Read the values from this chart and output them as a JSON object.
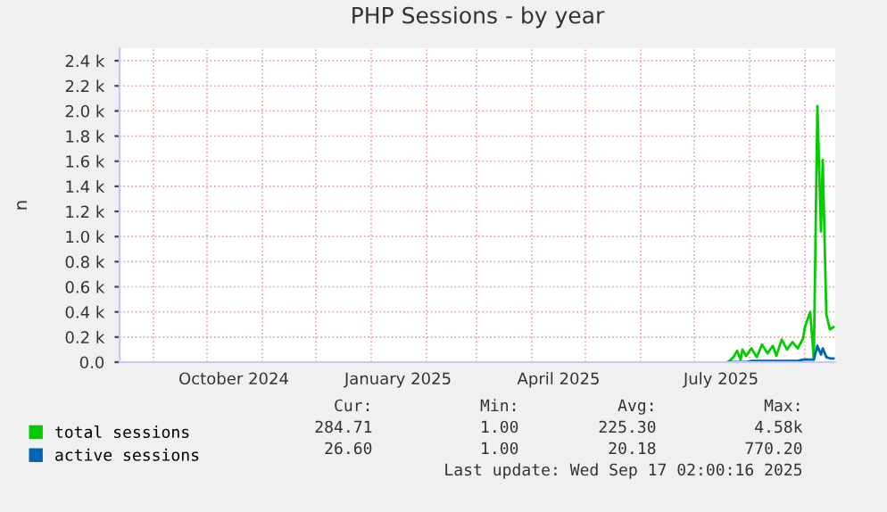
{
  "chart_data": {
    "type": "line",
    "title": "PHP Sessions - by year",
    "ylabel": "n",
    "x": [
      "2025-07-20",
      "2025-07-23",
      "2025-07-25",
      "2025-07-27",
      "2025-07-28",
      "2025-07-30",
      "2025-08-02",
      "2025-08-05",
      "2025-08-08",
      "2025-08-11",
      "2025-08-14",
      "2025-08-16",
      "2025-08-19",
      "2025-08-22",
      "2025-08-25",
      "2025-08-28",
      "2025-08-31",
      "2025-09-01",
      "2025-09-04",
      "2025-09-06",
      "2025-09-08",
      "2025-09-10",
      "2025-09-11",
      "2025-09-13",
      "2025-09-15",
      "2025-09-17"
    ],
    "series": [
      {
        "name": "total sessions",
        "color": "#00cc00",
        "values": [
          0,
          40,
          90,
          20,
          100,
          50,
          110,
          40,
          140,
          70,
          130,
          50,
          180,
          100,
          160,
          110,
          190,
          280,
          400,
          20,
          2040,
          1040,
          1610,
          380,
          260,
          280
        ]
      },
      {
        "name": "active sessions",
        "color": "#0066b3",
        "values": [
          0,
          0,
          0,
          0,
          0,
          0,
          10,
          10,
          10,
          10,
          10,
          10,
          10,
          10,
          10,
          10,
          20,
          20,
          20,
          20,
          130,
          60,
          110,
          40,
          30,
          30
        ]
      }
    ],
    "xlim": [
      "2024-08-13",
      "2025-09-18"
    ],
    "xticks": [
      {
        "value": "2024-09-01",
        "label": null
      },
      {
        "value": "2024-10-01",
        "label": null
      },
      {
        "value": "2024-10-16",
        "label": "October 2024"
      },
      {
        "value": "2024-11-01",
        "label": null
      },
      {
        "value": "2024-12-01",
        "label": null
      },
      {
        "value": "2025-01-01",
        "label": null
      },
      {
        "value": "2025-01-16",
        "label": "January 2025"
      },
      {
        "value": "2025-02-01",
        "label": null
      },
      {
        "value": "2025-03-01",
        "label": null
      },
      {
        "value": "2025-04-01",
        "label": null
      },
      {
        "value": "2025-04-16",
        "label": "April 2025"
      },
      {
        "value": "2025-05-01",
        "label": null
      },
      {
        "value": "2025-06-01",
        "label": null
      },
      {
        "value": "2025-07-01",
        "label": null
      },
      {
        "value": "2025-07-16",
        "label": "July 2025"
      },
      {
        "value": "2025-08-01",
        "label": null
      },
      {
        "value": "2025-09-01",
        "label": null
      }
    ],
    "ylim": [
      0,
      2500
    ],
    "yticks": [
      {
        "value": 0,
        "label": "0.0"
      },
      {
        "value": 200,
        "label": "0.2 k"
      },
      {
        "value": 400,
        "label": "0.4 k"
      },
      {
        "value": 600,
        "label": "0.6 k"
      },
      {
        "value": 800,
        "label": "0.8 k"
      },
      {
        "value": 1000,
        "label": "1.0 k"
      },
      {
        "value": 1200,
        "label": "1.2 k"
      },
      {
        "value": 1400,
        "label": "1.4 k"
      },
      {
        "value": 1600,
        "label": "1.6 k"
      },
      {
        "value": 1800,
        "label": "1.8 k"
      },
      {
        "value": 2000,
        "label": "2.0 k"
      },
      {
        "value": 2200,
        "label": "2.2 k"
      },
      {
        "value": 2400,
        "label": "2.4 k"
      }
    ],
    "grid": true,
    "legend": "bottom left",
    "marker": "none",
    "line_style": "solid",
    "annotations": [
      "Cur:",
      "Min:",
      "Avg:",
      "Max:",
      "284.71",
      "1.00",
      "225.30",
      "4.58k",
      "26.60",
      "1.00",
      "20.18",
      "770.20",
      "Last update: Wed Sep 17 02:00:16 2025"
    ]
  }
}
